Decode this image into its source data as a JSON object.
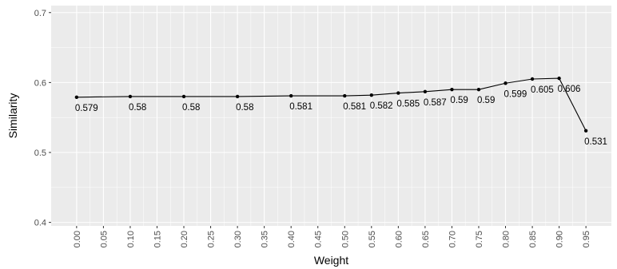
{
  "chart_data": {
    "type": "line",
    "title": "",
    "xlabel": "Weight",
    "ylabel": "Similarity",
    "x": [
      0.0,
      0.1,
      0.2,
      0.3,
      0.4,
      0.5,
      0.55,
      0.6,
      0.65,
      0.7,
      0.75,
      0.8,
      0.85,
      0.9,
      0.95
    ],
    "y": [
      0.579,
      0.58,
      0.58,
      0.58,
      0.581,
      0.581,
      0.582,
      0.585,
      0.587,
      0.59,
      0.59,
      0.599,
      0.605,
      0.606,
      0.531
    ],
    "data_labels": [
      "0.579",
      "0.58",
      "0.58",
      "0.58",
      "0.581",
      "0.581",
      "0.582",
      "0.585",
      "0.587",
      "0.59",
      "0.59",
      "0.599",
      "0.605",
      "0.606",
      "0.531"
    ],
    "x_ticks": [
      "0.00",
      "0.05",
      "0.10",
      "0.15",
      "0.20",
      "0.25",
      "0.30",
      "0.35",
      "0.40",
      "0.45",
      "0.50",
      "0.55",
      "0.60",
      "0.65",
      "0.70",
      "0.75",
      "0.80",
      "0.85",
      "0.90",
      "0.95"
    ],
    "y_ticks": [
      "0.4",
      "0.5",
      "0.6",
      "0.7"
    ],
    "xlim": [
      -0.0475,
      0.9975
    ],
    "ylim": [
      0.395,
      0.71
    ],
    "grid": true,
    "legend": "none",
    "colors": {
      "panel": "#ebebeb",
      "grid": "#ffffff",
      "line": "#000000",
      "point": "#000000"
    }
  }
}
